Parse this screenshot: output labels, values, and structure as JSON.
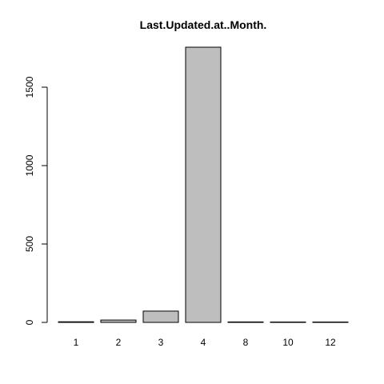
{
  "chart_data": {
    "type": "bar",
    "title": "Last.Updated.at..Month.",
    "xlabel": "",
    "ylabel": "",
    "categories": [
      "1",
      "2",
      "3",
      "4",
      "8",
      "10",
      "12"
    ],
    "values": [
      4,
      15,
      72,
      1755,
      3,
      1,
      2
    ],
    "ylim": [
      0,
      1755
    ],
    "yticks": [
      0,
      500,
      1000,
      1500
    ],
    "bar_color": "#bebebe",
    "border_color": "#000000",
    "grid": false,
    "legend": "none"
  }
}
